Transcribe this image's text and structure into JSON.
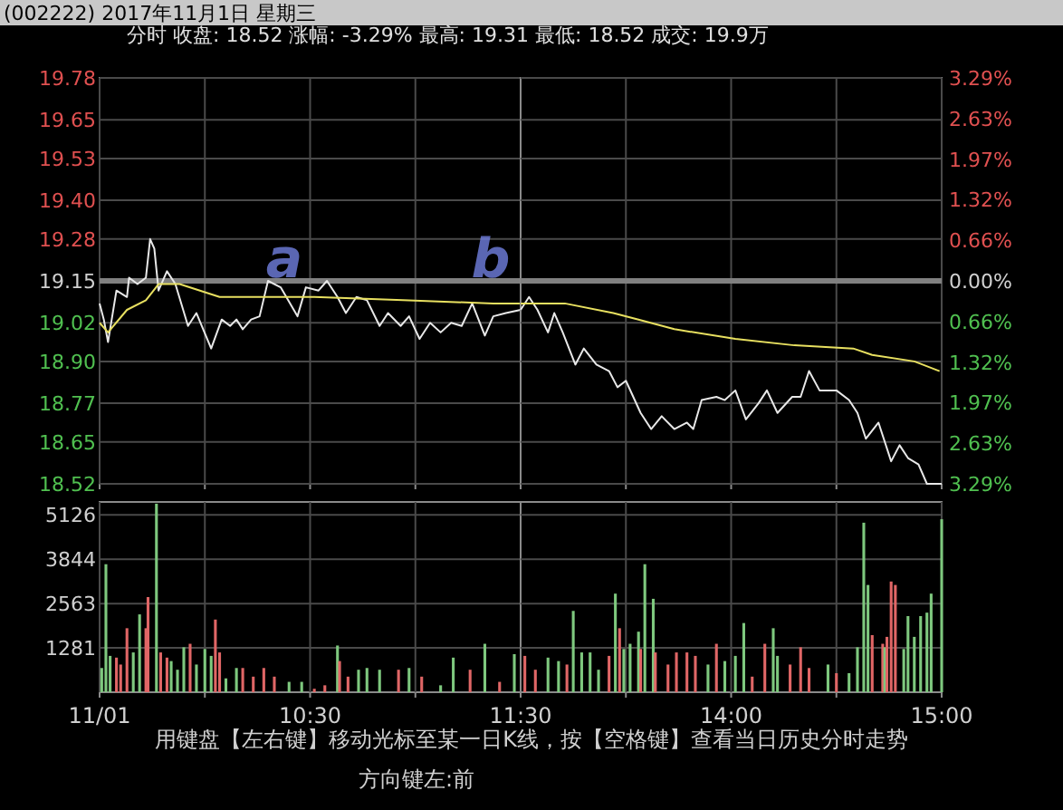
{
  "chart_data": [
    {
      "type": "line",
      "title": "(002222) 2017年11月1日 星期三",
      "subtitle": "分时  收盘: 18.52  涨幅: -3.29%  最高: 19.31  最低: 18.52  成交: 19.9万",
      "xlim": [
        9.5,
        11.5
      ],
      "xticks": [
        {
          "value": 9.5,
          "label": null
        },
        {
          "value": 10,
          "label": null
        },
        {
          "value": 10.5,
          "label": null
        },
        {
          "value": 11,
          "label": null
        },
        {
          "value": 11.5,
          "label": null
        }
      ],
      "ylim": [
        18.52,
        19.78
      ],
      "yticks": [
        {
          "value": 18.52,
          "label": "18.52"
        },
        {
          "value": 18.65,
          "label": "18.65"
        },
        {
          "value": 18.77,
          "label": "18.77"
        },
        {
          "value": 18.9,
          "label": "18.90"
        },
        {
          "value": 19.02,
          "label": "19.02"
        },
        {
          "value": 19.15,
          "label": "19.15"
        },
        {
          "value": 19.28,
          "label": "19.28"
        },
        {
          "value": 19.4,
          "label": "19.40"
        },
        {
          "value": 19.53,
          "label": "19.53"
        },
        {
          "value": 19.65,
          "label": "19.65"
        },
        {
          "value": 19.78,
          "label": "19.78"
        }
      ],
      "grid": true,
      "tick_labels": "y",
      "ref_lines": [
        {
          "axis": "y",
          "value": 19.15,
          "color": "#808080"
        }
      ],
      "series": [
        {
          "color": "#e8e8e8",
          "x": [
            9.5,
            9.52,
            9.54,
            9.58,
            9.63,
            9.64,
            9.68,
            9.72,
            9.74,
            9.76,
            9.78,
            9.82,
            9.86,
            9.92,
            9.96,
            10.03,
            10.08,
            10.12,
            10.15,
            10.18,
            10.22,
            10.26,
            10.3,
            10.36,
            10.44,
            10.48,
            10.54,
            10.58,
            10.63,
            10.67,
            10.72,
            10.77,
            10.83,
            10.87,
            10.93,
            10.97,
            11.02,
            11.07,
            11.12,
            11.17,
            11.22,
            11.27,
            11.33,
            11.37,
            11.43,
            11.5
          ],
          "values": [
            19.08,
            19.03,
            18.96,
            19.12,
            19.1,
            19.16,
            19.14,
            19.16,
            19.28,
            19.25,
            19.12,
            19.18,
            19.14,
            19.01,
            19.05,
            18.94,
            19.03,
            19.01,
            19.03,
            19.0,
            19.03,
            19.04,
            19.15,
            19.13,
            19.04,
            19.13,
            19.12,
            19.15,
            19.1,
            19.05,
            19.1,
            19.09,
            19.01,
            19.05,
            19.01,
            19.04,
            18.97,
            19.02,
            18.99,
            19.02,
            19.01,
            19.08,
            18.98,
            19.04,
            19.05,
            19.06
          ]
        },
        {
          "color": "#e8e060",
          "x": [
            9.5,
            9.54,
            9.63,
            9.72,
            9.78,
            9.88,
            10.07,
            10.23,
            10.52,
            10.94,
            11.37,
            11.5
          ],
          "values": [
            19.02,
            18.99,
            19.06,
            19.09,
            19.14,
            19.14,
            19.1,
            19.1,
            19.1,
            19.09,
            19.08,
            19.08
          ]
        }
      ],
      "annotations": [
        "a",
        "b"
      ]
    },
    {
      "type": "line",
      "xlim": [
        13,
        15
      ],
      "xticks": [
        {
          "value": 13.5,
          "label": null
        },
        {
          "value": 14,
          "label": null
        },
        {
          "value": 14.5,
          "label": null
        },
        {
          "value": 15,
          "label": null
        }
      ],
      "ylim": [
        18.52,
        19.78
      ],
      "yticks": [
        {
          "value": 18.52,
          "label": null
        },
        {
          "value": 18.65,
          "label": null
        },
        {
          "value": 18.77,
          "label": null
        },
        {
          "value": 18.9,
          "label": null
        },
        {
          "value": 19.02,
          "label": null
        },
        {
          "value": 19.15,
          "label": null
        },
        {
          "value": 19.28,
          "label": null
        },
        {
          "value": 19.4,
          "label": null
        },
        {
          "value": 19.53,
          "label": null
        },
        {
          "value": 19.65,
          "label": null
        },
        {
          "value": 19.78,
          "label": null
        }
      ],
      "y2lim": [
        -3.29,
        3.29
      ],
      "y2ticks": [
        {
          "value": -3.29,
          "label": "3.29%"
        },
        {
          "value": -2.63,
          "label": "2.63%"
        },
        {
          "value": -1.97,
          "label": "1.97%"
        },
        {
          "value": -1.32,
          "label": "1.32%"
        },
        {
          "value": -0.66,
          "label": "0.66%"
        },
        {
          "value": 0,
          "label": "0.00%"
        },
        {
          "value": 0.66,
          "label": "0.66%"
        },
        {
          "value": 1.32,
          "label": "1.32%"
        },
        {
          "value": 1.97,
          "label": "1.97%"
        },
        {
          "value": 2.63,
          "label": "2.63%"
        },
        {
          "value": 3.29,
          "label": "3.29%"
        }
      ],
      "grid": true,
      "tick_labels": false,
      "ref_lines": [
        {
          "axis": "y",
          "value": 19.15,
          "color": "#808080"
        }
      ],
      "series": [
        {
          "color": "#e8e8e8",
          "x": [
            13,
            13.04,
            13.08,
            13.13,
            13.16,
            13.2,
            13.26,
            13.3,
            13.36,
            13.42,
            13.46,
            13.5,
            13.57,
            13.62,
            13.67,
            13.73,
            13.79,
            13.82,
            13.86,
            13.93,
            13.97,
            14.02,
            14.07,
            14.13,
            14.17,
            14.22,
            14.29,
            14.33,
            14.37,
            14.42,
            14.46,
            14.5,
            14.56,
            14.6,
            14.64,
            14.7,
            14.76,
            14.8,
            14.84,
            14.89,
            14.93,
            15
          ],
          "values": [
            19.06,
            19.1,
            19.06,
            18.99,
            19.05,
            18.99,
            18.89,
            18.94,
            18.89,
            18.87,
            18.82,
            18.84,
            18.74,
            18.69,
            18.73,
            18.69,
            18.71,
            18.69,
            18.78,
            18.79,
            18.78,
            18.81,
            18.72,
            18.77,
            18.81,
            18.74,
            18.79,
            18.79,
            18.87,
            18.81,
            18.81,
            18.81,
            18.78,
            18.74,
            18.66,
            18.71,
            18.59,
            18.64,
            18.6,
            18.58,
            18.52,
            18.52
          ]
        },
        {
          "color": "#e8e060",
          "x": [
            13,
            13.21,
            13.44,
            13.56,
            13.73,
            14.02,
            14.3,
            14.58,
            14.67,
            14.87,
            14.99
          ],
          "values": [
            19.08,
            19.08,
            19.05,
            19.03,
            19.0,
            18.97,
            18.95,
            18.94,
            18.92,
            18.9,
            18.87
          ]
        }
      ]
    },
    {
      "type": "bar",
      "xlim": [
        9.5,
        11.5
      ],
      "xticks": [
        {
          "value": 9.5,
          "label": "11/01"
        },
        {
          "value": 10,
          "label": null
        },
        {
          "value": 10.5,
          "label": "10:30"
        },
        {
          "value": 11,
          "label": null
        },
        {
          "value": 11.5,
          "label": "11:30"
        }
      ],
      "ylim": [
        0,
        5500
      ],
      "yticks": [
        1281,
        2563,
        3844,
        5126
      ],
      "grid": true,
      "x": [
        9.51,
        9.53,
        9.55,
        9.58,
        9.6,
        9.63,
        9.66,
        9.69,
        9.72,
        9.73,
        9.77,
        9.79,
        9.82,
        9.84,
        9.87,
        9.9,
        9.93,
        9.96,
        10,
        10.03,
        10.05,
        10.07,
        10.1,
        10.15,
        10.18,
        10.23,
        10.28,
        10.33,
        10.4,
        10.46,
        10.52,
        10.57,
        10.63,
        10.64,
        10.68,
        10.73,
        10.77,
        10.83,
        10.92,
        10.97,
        11.03,
        11.12,
        11.18,
        11.26,
        11.33,
        11.4,
        11.47
      ],
      "values": [
        700,
        3700,
        1050,
        1000,
        800,
        1850,
        1150,
        2250,
        1850,
        2750,
        5450,
        1150,
        1000,
        900,
        650,
        1300,
        1400,
        800,
        1250,
        1050,
        2100,
        1150,
        400,
        700,
        700,
        450,
        700,
        450,
        300,
        300,
        100,
        200,
        1350,
        900,
        450,
        650,
        700,
        650,
        650,
        700,
        450,
        200,
        1000,
        650,
        1400,
        300,
        1100
      ],
      "colors": [
        "#7ec87e",
        "#7ec87e",
        "#7ec87e",
        "#e06666",
        "#e06666",
        "#e06666",
        "#7ec87e",
        "#7ec87e",
        "#e06666",
        "#e06666",
        "#7ec87e",
        "#e06666",
        "#e06666",
        "#7ec87e",
        "#7ec87e",
        "#7ec87e",
        "#e06666",
        "#7ec87e",
        "#7ec87e",
        "#7ec87e",
        "#e06666",
        "#e06666",
        "#7ec87e",
        "#7ec87e",
        "#e06666",
        "#e06666",
        "#e06666",
        "#e06666",
        "#7ec87e",
        "#7ec87e",
        "#e06666",
        "#e06666",
        "#7ec87e",
        "#e06666",
        "#e06666",
        "#7ec87e",
        "#7ec87e",
        "#7ec87e",
        "#e06666",
        "#7ec87e",
        "#e06666",
        "#7ec87e",
        "#7ec87e",
        "#e06666",
        "#7ec87e",
        "#e06666",
        "#7ec87e"
      ],
      "annotations": [
        "用键盘【左右键】移动光标至某一日K线，按【空格键】查看当日历史分时走势",
        "方向键左:前"
      ]
    },
    {
      "type": "bar",
      "xlim": [
        13,
        15
      ],
      "xticks": [
        {
          "value": 13.5,
          "label": null
        },
        {
          "value": 14,
          "label": "14:00"
        },
        {
          "value": 14.5,
          "label": null
        },
        {
          "value": 15,
          "label": "15:00"
        }
      ],
      "ylim": [
        0,
        5500
      ],
      "yticks": [
        {
          "value": 1281,
          "label": null
        },
        {
          "value": 2563,
          "label": null
        },
        {
          "value": 3844,
          "label": null
        },
        {
          "value": 5126,
          "label": null
        }
      ],
      "grid": true,
      "tick_labels": "x",
      "x": [
        13.02,
        13.07,
        13.13,
        13.18,
        13.22,
        13.25,
        13.29,
        13.33,
        13.37,
        13.42,
        13.45,
        13.47,
        13.49,
        13.52,
        13.56,
        13.57,
        13.59,
        13.63,
        13.64,
        13.7,
        13.74,
        13.79,
        13.83,
        13.89,
        13.93,
        13.97,
        14.02,
        14.06,
        14.1,
        14.16,
        14.2,
        14.22,
        14.28,
        14.33,
        14.37,
        14.46,
        14.5,
        14.56,
        14.6,
        14.63,
        14.65,
        14.67,
        14.72,
        14.73,
        14.74,
        14.76,
        14.78,
        14.82,
        14.84,
        14.87,
        14.9,
        14.93,
        14.95,
        15
      ],
      "values": [
        1050,
        650,
        1000,
        900,
        800,
        2350,
        1150,
        1150,
        650,
        1050,
        2850,
        1850,
        1250,
        1400,
        1750,
        1250,
        3700,
        2700,
        1150,
        800,
        1150,
        1150,
        1050,
        800,
        1400,
        900,
        1050,
        2000,
        450,
        1400,
        1850,
        1050,
        800,
        1300,
        700,
        800,
        550,
        550,
        1300,
        4900,
        3100,
        1650,
        1400,
        1300,
        1600,
        3200,
        3100,
        1250,
        2200,
        1600,
        2200,
        2300,
        2850,
        5000
      ],
      "colors": [
        "#e06666",
        "#e06666",
        "#7ec87e",
        "#7ec87e",
        "#e06666",
        "#7ec87e",
        "#7ec87e",
        "#7ec87e",
        "#7ec87e",
        "#e06666",
        "#7ec87e",
        "#e06666",
        "#7ec87e",
        "#7ec87e",
        "#7ec87e",
        "#e06666",
        "#7ec87e",
        "#7ec87e",
        "#e06666",
        "#e06666",
        "#e06666",
        "#e06666",
        "#e06666",
        "#7ec87e",
        "#e06666",
        "#7ec87e",
        "#7ec87e",
        "#7ec87e",
        "#e06666",
        "#e06666",
        "#7ec87e",
        "#7ec87e",
        "#e06666",
        "#e06666",
        "#e06666",
        "#7ec87e",
        "#e06666",
        "#7ec87e",
        "#7ec87e",
        "#7ec87e",
        "#7ec87e",
        "#e06666",
        "#e06666",
        "#7ec87e",
        "#e06666",
        "#e06666",
        "#e06666",
        "#7ec87e",
        "#7ec87e",
        "#7ec87e",
        "#7ec87e",
        "#7ec87e",
        "#7ec87e",
        "#7ec87e"
      ]
    }
  ]
}
